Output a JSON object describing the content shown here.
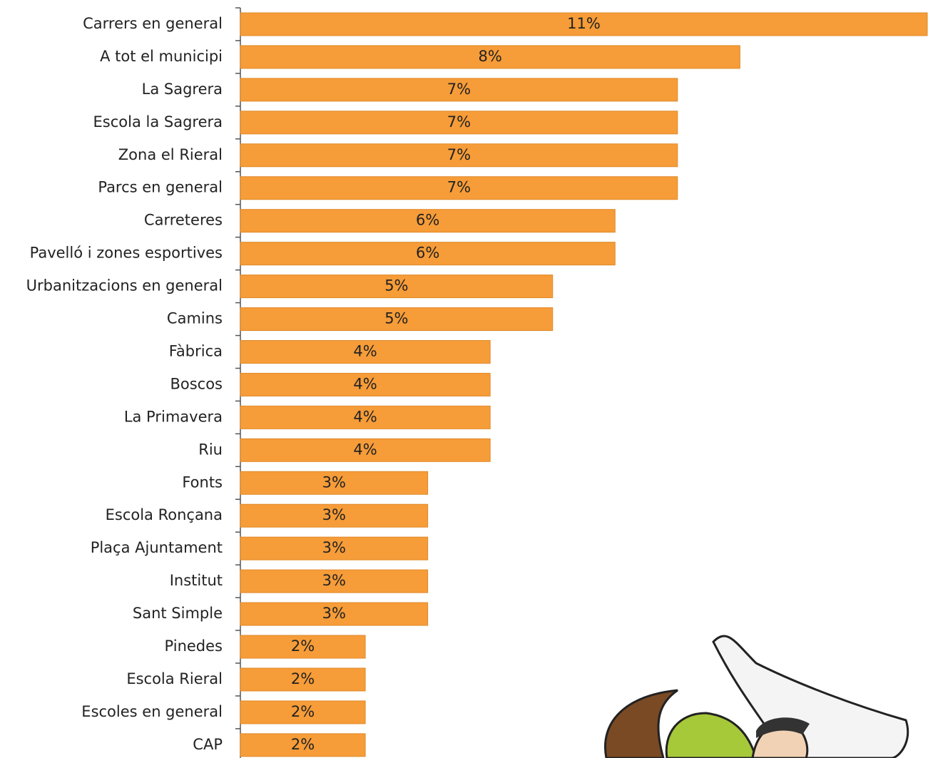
{
  "chart_data": {
    "type": "bar",
    "orientation": "horizontal",
    "color": "#f69c38",
    "categories": [
      "Carrers en general",
      "A tot el municipi",
      "La Sagrera",
      "Escola la Sagrera",
      "Zona el Rieral",
      "Parcs en general",
      "Carreteres",
      "Pavelló i zones esportives",
      "Urbanitzacions en general",
      "Camins",
      "Fàbrica",
      "Boscos",
      "La Primavera",
      "Riu",
      "Fonts",
      "Escola Ronçana",
      "Plaça Ajuntament",
      "Institut",
      "Sant Simple",
      "Pinedes",
      "Escola Rieral",
      "Escoles en general",
      "CAP"
    ],
    "values": [
      11,
      8,
      7,
      7,
      7,
      7,
      6,
      6,
      5,
      5,
      4,
      4,
      4,
      4,
      3,
      3,
      3,
      3,
      3,
      2,
      2,
      2,
      2
    ],
    "value_labels": [
      "11%",
      "8%",
      "7%",
      "7%",
      "7%",
      "7%",
      "6%",
      "6%",
      "5%",
      "5%",
      "4%",
      "4%",
      "4%",
      "4%",
      "3%",
      "3%",
      "3%",
      "3%",
      "3%",
      "2%",
      "2%",
      "2%",
      "2%"
    ]
  }
}
